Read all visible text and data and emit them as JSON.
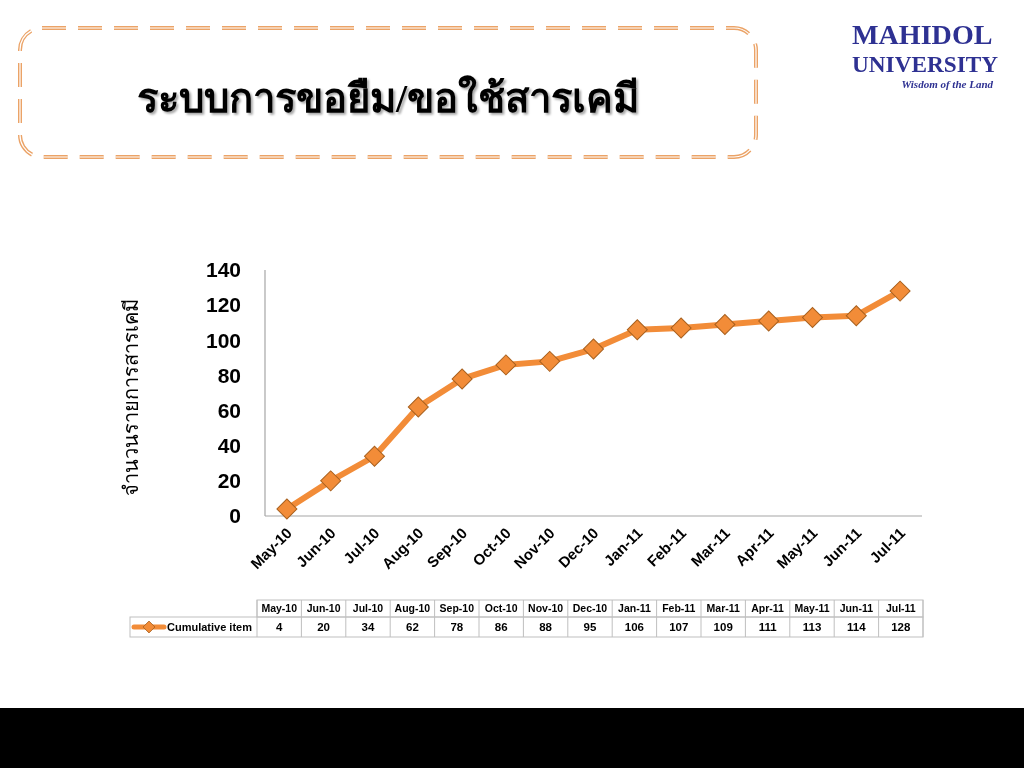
{
  "chart_data": {
    "type": "line",
    "title": "ระบบการขอยืม/ขอใช้สารเคมี",
    "ylabel": "จำนวนรายการสารเคมี",
    "categories": [
      "May-10",
      "Jun-10",
      "Jul-10",
      "Aug-10",
      "Sep-10",
      "Oct-10",
      "Nov-10",
      "Dec-10",
      "Jan-11",
      "Feb-11",
      "Mar-11",
      "Apr-11",
      "May-11",
      "Jun-11",
      "Jul-11"
    ],
    "series": [
      {
        "name": "Cumulative item",
        "color": "#f28c38",
        "values": [
          4,
          20,
          34,
          62,
          78,
          86,
          88,
          95,
          106,
          107,
          109,
          111,
          113,
          114,
          128
        ]
      }
    ],
    "ylim": [
      0,
      140
    ],
    "yticks": [
      0,
      20,
      40,
      60,
      80,
      100,
      120,
      140
    ],
    "grid": false,
    "legend": "bottom",
    "marker": "diamond",
    "line_style": "solid",
    "data_labels": true,
    "annotations": [
      "MAHIDOL UNIVERSITY",
      "Wisdom of the Land"
    ]
  }
}
